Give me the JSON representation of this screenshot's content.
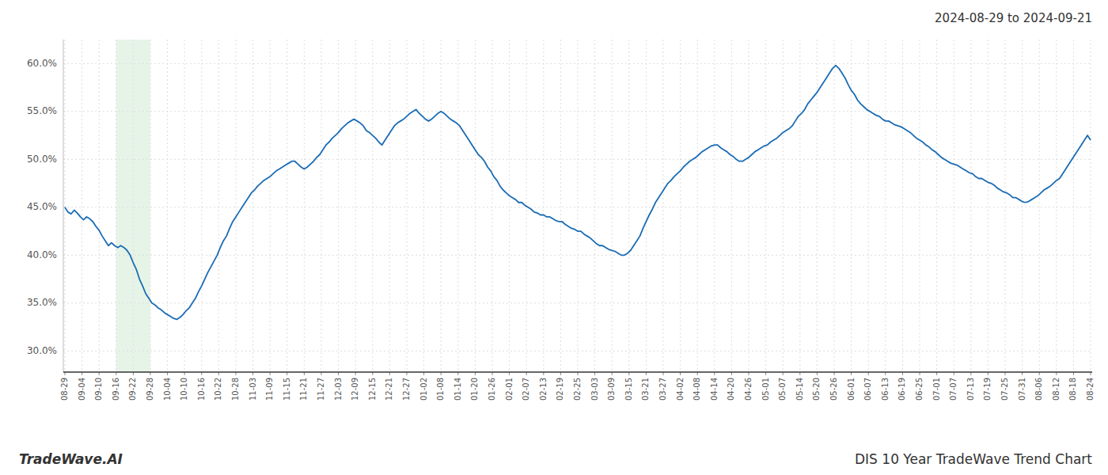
{
  "chart_data": {
    "type": "line",
    "title": "DIS 10 Year TradeWave Trend Chart",
    "subtitle": "2024-08-29 to 2024-09-21",
    "annotations": [
      "TradeWave.AI"
    ],
    "color": "#1a6cb5",
    "grid": true,
    "shade": {
      "start": 16.5,
      "end": 27.5,
      "color": "#c8e6c9"
    },
    "xlim": [
      -0.5,
      330.5
    ],
    "xticks": [
      {
        "value": 0,
        "label": "08-29"
      },
      {
        "value": 5.5,
        "label": "09-04"
      },
      {
        "value": 11,
        "label": "09-10"
      },
      {
        "value": 16.5,
        "label": "09-16"
      },
      {
        "value": 22,
        "label": "09-22"
      },
      {
        "value": 27.5,
        "label": "09-28"
      },
      {
        "value": 33,
        "label": "10-04"
      },
      {
        "value": 38.5,
        "label": "10-10"
      },
      {
        "value": 44,
        "label": "10-16"
      },
      {
        "value": 49.5,
        "label": "10-22"
      },
      {
        "value": 55,
        "label": "10-28"
      },
      {
        "value": 60.5,
        "label": "11-03"
      },
      {
        "value": 66,
        "label": "11-09"
      },
      {
        "value": 71.5,
        "label": "11-15"
      },
      {
        "value": 77,
        "label": "11-21"
      },
      {
        "value": 82.5,
        "label": "11-27"
      },
      {
        "value": 88,
        "label": "12-03"
      },
      {
        "value": 93.5,
        "label": "12-09"
      },
      {
        "value": 99,
        "label": "12-15"
      },
      {
        "value": 104.5,
        "label": "12-21"
      },
      {
        "value": 110,
        "label": "12-27"
      },
      {
        "value": 115.5,
        "label": "01-02"
      },
      {
        "value": 121,
        "label": "01-08"
      },
      {
        "value": 126.5,
        "label": "01-14"
      },
      {
        "value": 132,
        "label": "01-20"
      },
      {
        "value": 137.5,
        "label": "01-26"
      },
      {
        "value": 143,
        "label": "02-01"
      },
      {
        "value": 148.5,
        "label": "02-07"
      },
      {
        "value": 154,
        "label": "02-13"
      },
      {
        "value": 159.5,
        "label": "02-19"
      },
      {
        "value": 165,
        "label": "02-25"
      },
      {
        "value": 170.5,
        "label": "03-03"
      },
      {
        "value": 176,
        "label": "03-09"
      },
      {
        "value": 181.5,
        "label": "03-15"
      },
      {
        "value": 187,
        "label": "03-21"
      },
      {
        "value": 192.5,
        "label": "03-27"
      },
      {
        "value": 198,
        "label": "04-02"
      },
      {
        "value": 203.5,
        "label": "04-08"
      },
      {
        "value": 209,
        "label": "04-14"
      },
      {
        "value": 214.5,
        "label": "04-20"
      },
      {
        "value": 220,
        "label": "04-26"
      },
      {
        "value": 225.5,
        "label": "05-01"
      },
      {
        "value": 231,
        "label": "05-07"
      },
      {
        "value": 236.5,
        "label": "05-14"
      },
      {
        "value": 242,
        "label": "05-20"
      },
      {
        "value": 247.5,
        "label": "05-26"
      },
      {
        "value": 253,
        "label": "06-01"
      },
      {
        "value": 258.5,
        "label": "06-07"
      },
      {
        "value": 264,
        "label": "06-13"
      },
      {
        "value": 269.5,
        "label": "06-19"
      },
      {
        "value": 275,
        "label": "06-25"
      },
      {
        "value": 280.5,
        "label": "07-01"
      },
      {
        "value": 286,
        "label": "07-07"
      },
      {
        "value": 291.5,
        "label": "07-13"
      },
      {
        "value": 297,
        "label": "07-19"
      },
      {
        "value": 302.5,
        "label": "07-25"
      },
      {
        "value": 308,
        "label": "07-31"
      },
      {
        "value": 313.5,
        "label": "08-06"
      },
      {
        "value": 319,
        "label": "08-12"
      },
      {
        "value": 324.5,
        "label": "08-18"
      },
      {
        "value": 330,
        "label": "08-24"
      }
    ],
    "ylim": [
      0.278,
      0.625
    ],
    "yticks": [
      {
        "value": 0.3,
        "label": "30.0%"
      },
      {
        "value": 0.35,
        "label": "35.0%"
      },
      {
        "value": 0.4,
        "label": "40.0%"
      },
      {
        "value": 0.45,
        "label": "45.0%"
      },
      {
        "value": 0.5,
        "label": "50.0%"
      },
      {
        "value": 0.55,
        "label": "55.0%"
      },
      {
        "value": 0.6,
        "label": "60.0%"
      }
    ],
    "values": [
      0.45,
      0.445,
      0.443,
      0.447,
      0.444,
      0.44,
      0.437,
      0.44,
      0.438,
      0.435,
      0.43,
      0.426,
      0.42,
      0.415,
      0.41,
      0.413,
      0.41,
      0.408,
      0.41,
      0.408,
      0.405,
      0.4,
      0.392,
      0.385,
      0.375,
      0.368,
      0.36,
      0.355,
      0.35,
      0.348,
      0.345,
      0.343,
      0.34,
      0.338,
      0.336,
      0.334,
      0.333,
      0.335,
      0.338,
      0.342,
      0.345,
      0.35,
      0.355,
      0.362,
      0.368,
      0.375,
      0.382,
      0.388,
      0.394,
      0.4,
      0.408,
      0.415,
      0.42,
      0.428,
      0.435,
      0.44,
      0.445,
      0.45,
      0.455,
      0.46,
      0.465,
      0.468,
      0.472,
      0.475,
      0.478,
      0.48,
      0.482,
      0.485,
      0.488,
      0.49,
      0.492,
      0.494,
      0.496,
      0.498,
      0.498,
      0.495,
      0.492,
      0.49,
      0.492,
      0.495,
      0.498,
      0.502,
      0.505,
      0.51,
      0.515,
      0.518,
      0.522,
      0.525,
      0.528,
      0.532,
      0.535,
      0.538,
      0.54,
      0.542,
      0.54,
      0.538,
      0.535,
      0.53,
      0.528,
      0.525,
      0.522,
      0.518,
      0.515,
      0.52,
      0.525,
      0.53,
      0.535,
      0.538,
      0.54,
      0.542,
      0.545,
      0.548,
      0.55,
      0.552,
      0.548,
      0.545,
      0.542,
      0.54,
      0.542,
      0.545,
      0.548,
      0.55,
      0.548,
      0.545,
      0.542,
      0.54,
      0.538,
      0.535,
      0.53,
      0.525,
      0.52,
      0.515,
      0.51,
      0.505,
      0.502,
      0.498,
      0.492,
      0.488,
      0.482,
      0.478,
      0.472,
      0.468,
      0.465,
      0.462,
      0.46,
      0.458,
      0.455,
      0.455,
      0.452,
      0.45,
      0.448,
      0.445,
      0.444,
      0.442,
      0.442,
      0.44,
      0.44,
      0.438,
      0.436,
      0.435,
      0.435,
      0.432,
      0.43,
      0.428,
      0.427,
      0.425,
      0.425,
      0.422,
      0.42,
      0.418,
      0.415,
      0.412,
      0.41,
      0.41,
      0.408,
      0.406,
      0.405,
      0.404,
      0.402,
      0.4,
      0.4,
      0.402,
      0.405,
      0.41,
      0.415,
      0.42,
      0.428,
      0.435,
      0.442,
      0.448,
      0.455,
      0.46,
      0.465,
      0.47,
      0.475,
      0.478,
      0.482,
      0.485,
      0.488,
      0.492,
      0.495,
      0.498,
      0.5,
      0.502,
      0.505,
      0.508,
      0.51,
      0.512,
      0.514,
      0.515,
      0.515,
      0.512,
      0.51,
      0.508,
      0.505,
      0.503,
      0.5,
      0.498,
      0.498,
      0.5,
      0.502,
      0.505,
      0.508,
      0.51,
      0.512,
      0.514,
      0.515,
      0.518,
      0.52,
      0.522,
      0.525,
      0.528,
      0.53,
      0.532,
      0.535,
      0.54,
      0.545,
      0.548,
      0.552,
      0.558,
      0.562,
      0.566,
      0.57,
      0.575,
      0.58,
      0.585,
      0.59,
      0.595,
      0.598,
      0.595,
      0.59,
      0.585,
      0.578,
      0.572,
      0.568,
      0.562,
      0.558,
      0.555,
      0.552,
      0.55,
      0.548,
      0.546,
      0.545,
      0.542,
      0.54,
      0.54,
      0.538,
      0.536,
      0.535,
      0.534,
      0.532,
      0.53,
      0.528,
      0.525,
      0.522,
      0.52,
      0.518,
      0.515,
      0.513,
      0.51,
      0.508,
      0.505,
      0.502,
      0.5,
      0.498,
      0.496,
      0.495,
      0.494,
      0.492,
      0.49,
      0.488,
      0.486,
      0.485,
      0.482,
      0.48,
      0.48,
      0.478,
      0.476,
      0.475,
      0.473,
      0.47,
      0.468,
      0.466,
      0.465,
      0.463,
      0.46,
      0.46,
      0.458,
      0.456,
      0.455,
      0.456,
      0.458,
      0.46,
      0.462,
      0.465,
      0.468,
      0.47,
      0.472,
      0.475,
      0.478,
      0.48,
      0.485,
      0.49,
      0.495,
      0.5,
      0.505,
      0.51,
      0.515,
      0.52,
      0.525,
      0.52
    ]
  }
}
